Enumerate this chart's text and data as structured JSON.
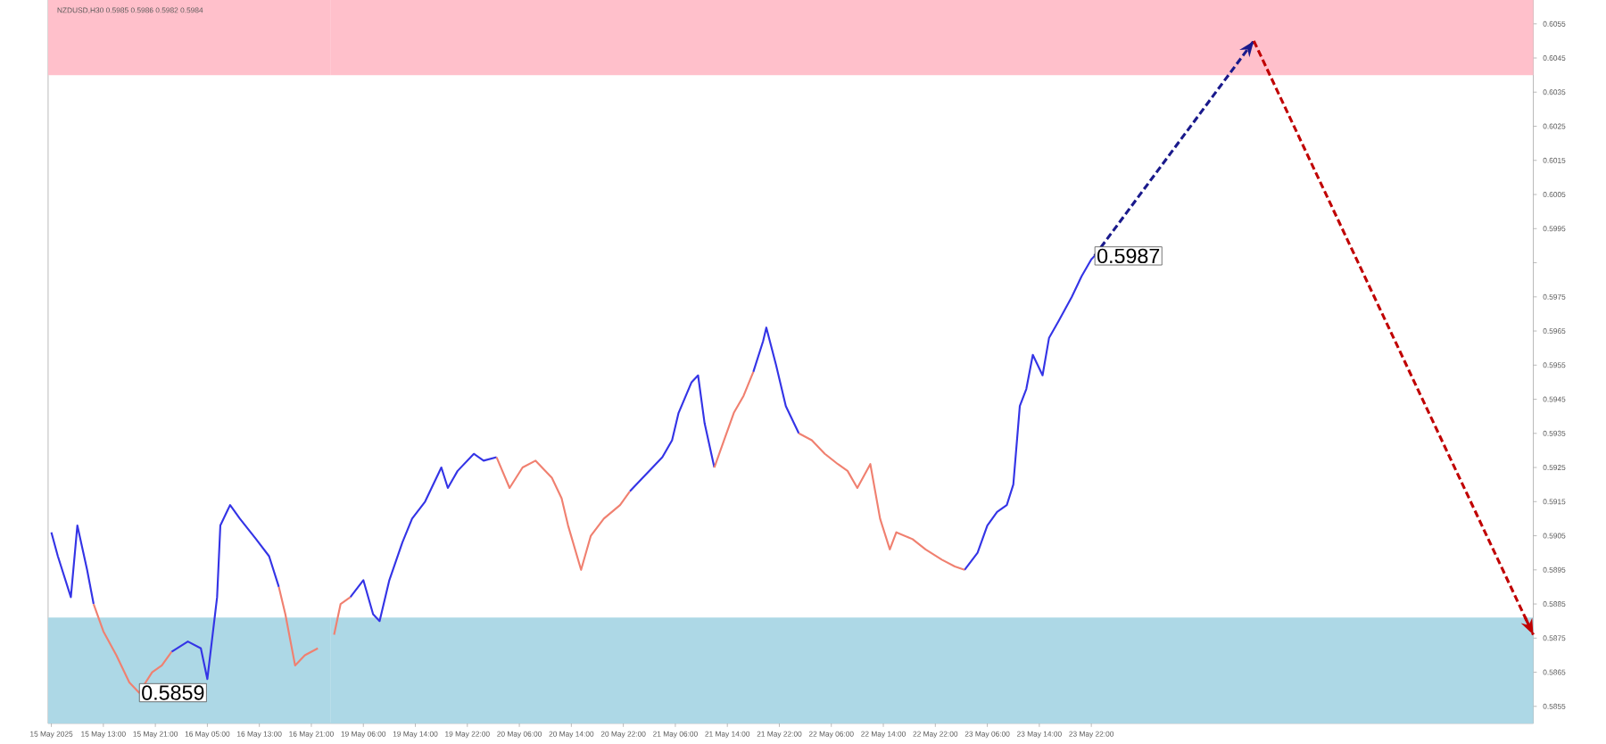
{
  "chart_data": [
    {
      "type": "line",
      "title": "NZDUSD,H30  0.5985 0.5986 0.5982 0.5984",
      "tick_labels": "x",
      "xlim": [
        "2025-05-15T04:30",
        "2025-05-17T00:00"
      ],
      "ylim": [
        0.585,
        0.6062
      ],
      "xticks": [
        {
          "value": "2025-05-15T05:00",
          "label": "15 May 2025"
        },
        {
          "value": "2025-05-15T13:00",
          "label": "15 May 13:00"
        },
        {
          "value": "2025-05-15T21:00",
          "label": "15 May 21:00"
        },
        {
          "value": "2025-05-16T05:00",
          "label": "16 May 05:00"
        },
        {
          "value": "2025-05-16T13:00",
          "label": "16 May 13:00"
        },
        {
          "value": "2025-05-16T21:00",
          "label": "16 May 21:00"
        }
      ],
      "bands": [
        {
          "axis": "y",
          "from": 0.604,
          "to": 0.6062,
          "color": "#ffc0cb"
        },
        {
          "axis": "y",
          "from": 0.585,
          "to": 0.5881,
          "color": "#add8e6"
        }
      ],
      "series": [
        {
          "color": "#3434e6",
          "line_style": "solid",
          "x": [
            "2025-05-15T05:00",
            "2025-05-15T06:00",
            "2025-05-15T08:00",
            "2025-05-15T09:00",
            "2025-05-15T10:30",
            "2025-05-15T11:30",
            "2025-05-15T17:00",
            "2025-05-15T23:30",
            "2025-05-16T02:00",
            "2025-05-16T04:00",
            "2025-05-16T05:00",
            "2025-05-16T06:30",
            "2025-05-16T07:00",
            "2025-05-16T08:30",
            "2025-05-16T10:00",
            "2025-05-16T12:30",
            "2025-05-16T14:30",
            "2025-05-16T16:00"
          ],
          "values": [
            0.5906,
            0.5899,
            0.5887,
            0.5908,
            0.5895,
            0.5885,
            null,
            0.5871,
            0.5874,
            0.5872,
            0.5863,
            0.5887,
            0.5908,
            0.5914,
            0.591,
            0.5904,
            0.5899,
            0.589
          ]
        },
        {
          "color": "#f08070",
          "line_style": "solid",
          "x": [
            "2025-05-15T11:30",
            "2025-05-15T13:00",
            "2025-05-15T15:00",
            "2025-05-15T17:00",
            "2025-05-15T18:30",
            "2025-05-15T20:30",
            "2025-05-15T22:00",
            "2025-05-15T23:30",
            "2025-05-16T07:00",
            "2025-05-16T16:00",
            "2025-05-16T17:00",
            "2025-05-16T18:30",
            "2025-05-16T20:00",
            "2025-05-16T22:00"
          ],
          "values": [
            0.5885,
            0.5877,
            0.587,
            0.5862,
            0.5859,
            0.5865,
            0.5867,
            0.5871,
            null,
            0.589,
            0.5882,
            0.5867,
            0.587,
            0.5872
          ]
        }
      ],
      "annotations": [
        {
          "text": "0.5859",
          "x": "2025-05-15T18:30",
          "y": 0.5859
        }
      ]
    },
    {
      "type": "line",
      "xlim": [
        "2025-05-19T01:00",
        "2025-05-26T18:00"
      ],
      "ylim": [
        0.585,
        0.6062
      ],
      "xticks": [
        {
          "value": "2025-05-19T06:00",
          "label": "19 May 06:00"
        },
        {
          "value": "2025-05-19T14:00",
          "label": "19 May 14:00"
        },
        {
          "value": "2025-05-19T22:00",
          "label": "19 May 22:00"
        },
        {
          "value": "2025-05-20T06:00",
          "label": "20 May 06:00"
        },
        {
          "value": "2025-05-20T14:00",
          "label": "20 May 14:00"
        },
        {
          "value": "2025-05-20T22:00",
          "label": "20 May 22:00"
        },
        {
          "value": "2025-05-21T06:00",
          "label": "21 May 06:00"
        },
        {
          "value": "2025-05-21T14:00",
          "label": "21 May 14:00"
        },
        {
          "value": "2025-05-21T22:00",
          "label": "21 May 22:00"
        },
        {
          "value": "2025-05-22T06:00",
          "label": "22 May 06:00"
        },
        {
          "value": "2025-05-22T14:00",
          "label": "22 May 14:00"
        },
        {
          "value": "2025-05-22T22:00",
          "label": "22 May 22:00"
        },
        {
          "value": "2025-05-23T06:00",
          "label": "23 May 06:00"
        },
        {
          "value": "2025-05-23T14:00",
          "label": "23 May 14:00"
        },
        {
          "value": "2025-05-23T22:00",
          "label": "23 May 22:00"
        }
      ],
      "yticks": [
        0.5855,
        0.5865,
        0.5875,
        0.5885,
        0.5895,
        0.5905,
        0.5915,
        0.5925,
        0.5935,
        0.5945,
        0.5955,
        0.5965,
        0.5975,
        {
          "value": 0.5985,
          "label": null
        },
        0.5995,
        0.6005,
        0.6015,
        0.6025,
        0.6035,
        0.6045,
        0.6055
      ],
      "bands": [
        {
          "axis": "y",
          "from": 0.604,
          "to": 0.6062,
          "color": "#ffc0cb"
        },
        {
          "axis": "y",
          "from": 0.585,
          "to": 0.5881,
          "color": "#add8e6"
        }
      ],
      "series": [
        {
          "color": "#3434e6",
          "line_style": "solid",
          "x": [
            "2025-05-19T04:00",
            "2025-05-19T06:00",
            "2025-05-19T07:30",
            "2025-05-19T08:30",
            "2025-05-19T10:00",
            "2025-05-19T12:00",
            "2025-05-19T13:30",
            "2025-05-19T15:30",
            "2025-05-19T18:00",
            "2025-05-19T19:00",
            "2025-05-19T20:30",
            "2025-05-19T23:00",
            "2025-05-20T00:30",
            "2025-05-20T02:30",
            "2025-05-20T12:00",
            "2025-05-20T23:00",
            "2025-05-21T00:30",
            "2025-05-21T02:30",
            "2025-05-21T04:00",
            "2025-05-21T05:30",
            "2025-05-21T06:30",
            "2025-05-21T08:30",
            "2025-05-21T09:30",
            "2025-05-21T10:30",
            "2025-05-21T12:00",
            "2025-05-21T15:00",
            "2025-05-21T18:00",
            "2025-05-21T19:30",
            "2025-05-21T20:00",
            "2025-05-21T21:30",
            "2025-05-21T23:00",
            "2025-05-22T01:00",
            "2025-05-22T11:00",
            "2025-05-23T02:30",
            "2025-05-23T04:30",
            "2025-05-23T06:00",
            "2025-05-23T07:30",
            "2025-05-23T09:00",
            "2025-05-23T10:00",
            "2025-05-23T11:00",
            "2025-05-23T12:00",
            "2025-05-23T13:00",
            "2025-05-23T14:30",
            "2025-05-23T15:30",
            "2025-05-23T17:00",
            "2025-05-23T19:00",
            "2025-05-23T20:30",
            "2025-05-23T22:00",
            "2025-05-23T22:30"
          ],
          "values": [
            0.5887,
            0.5892,
            0.5882,
            0.588,
            0.5892,
            0.5903,
            0.591,
            0.5915,
            0.5925,
            0.5919,
            0.5924,
            0.5929,
            0.5927,
            0.5928,
            null,
            0.5918,
            0.5921,
            0.5925,
            0.5928,
            0.5933,
            0.5941,
            0.595,
            0.5952,
            0.5938,
            0.5925,
            null,
            0.5953,
            0.5962,
            0.5966,
            0.5955,
            0.5943,
            0.5935,
            null,
            0.5895,
            0.59,
            0.5908,
            0.5912,
            0.5914,
            0.592,
            0.5943,
            0.5948,
            0.5958,
            0.5952,
            0.5963,
            0.5968,
            0.5975,
            0.5981,
            0.5986,
            0.5987
          ]
        },
        {
          "color": "#f08070",
          "line_style": "solid",
          "x": [
            "2025-05-19T01:30",
            "2025-05-19T02:30",
            "2025-05-19T04:00",
            "2025-05-19T15:00",
            "2025-05-20T02:30",
            "2025-05-20T04:30",
            "2025-05-20T06:30",
            "2025-05-20T08:30",
            "2025-05-20T11:00",
            "2025-05-20T12:30",
            "2025-05-20T13:30",
            "2025-05-20T15:30",
            "2025-05-20T17:00",
            "2025-05-20T19:00",
            "2025-05-20T21:30",
            "2025-05-20T23:00",
            "2025-05-21T05:00",
            "2025-05-21T12:00",
            "2025-05-21T13:30",
            "2025-05-21T15:00",
            "2025-05-21T16:30",
            "2025-05-21T18:00",
            "2025-05-21T21:00",
            "2025-05-22T01:00",
            "2025-05-22T03:00",
            "2025-05-22T05:00",
            "2025-05-22T07:00",
            "2025-05-22T08:30",
            "2025-05-22T10:00",
            "2025-05-22T12:00",
            "2025-05-22T13:30",
            "2025-05-22T15:00",
            "2025-05-22T16:00",
            "2025-05-22T18:30",
            "2025-05-22T20:30",
            "2025-05-22T23:00",
            "2025-05-23T01:00",
            "2025-05-23T02:30"
          ],
          "values": [
            0.5876,
            0.5885,
            0.5887,
            null,
            0.5928,
            0.5919,
            0.5925,
            0.5927,
            0.5922,
            0.5916,
            0.5908,
            0.5895,
            0.5905,
            0.591,
            0.5914,
            0.5918,
            null,
            0.5925,
            0.5933,
            0.5941,
            0.5946,
            0.5953,
            null,
            0.5935,
            0.5933,
            0.5929,
            0.5926,
            0.5924,
            0.5919,
            0.5926,
            0.591,
            0.5901,
            0.5906,
            0.5904,
            0.5901,
            0.5898,
            0.5896,
            0.5895
          ]
        },
        {
          "color": "#1a1a8c",
          "line_style": "dashed",
          "x": [
            "2025-05-23T22:30",
            "2025-05-24T23:00"
          ],
          "values": [
            0.5987,
            0.605
          ]
        },
        {
          "color": "#c00000",
          "line_style": "dashed",
          "x": [
            "2025-05-24T23:00",
            "2025-05-26T18:00"
          ],
          "values": [
            0.605,
            0.5876
          ]
        }
      ],
      "annotations": [
        {
          "text": "0.5987",
          "x": "2025-05-23T22:30",
          "y": 0.5987
        }
      ]
    }
  ]
}
